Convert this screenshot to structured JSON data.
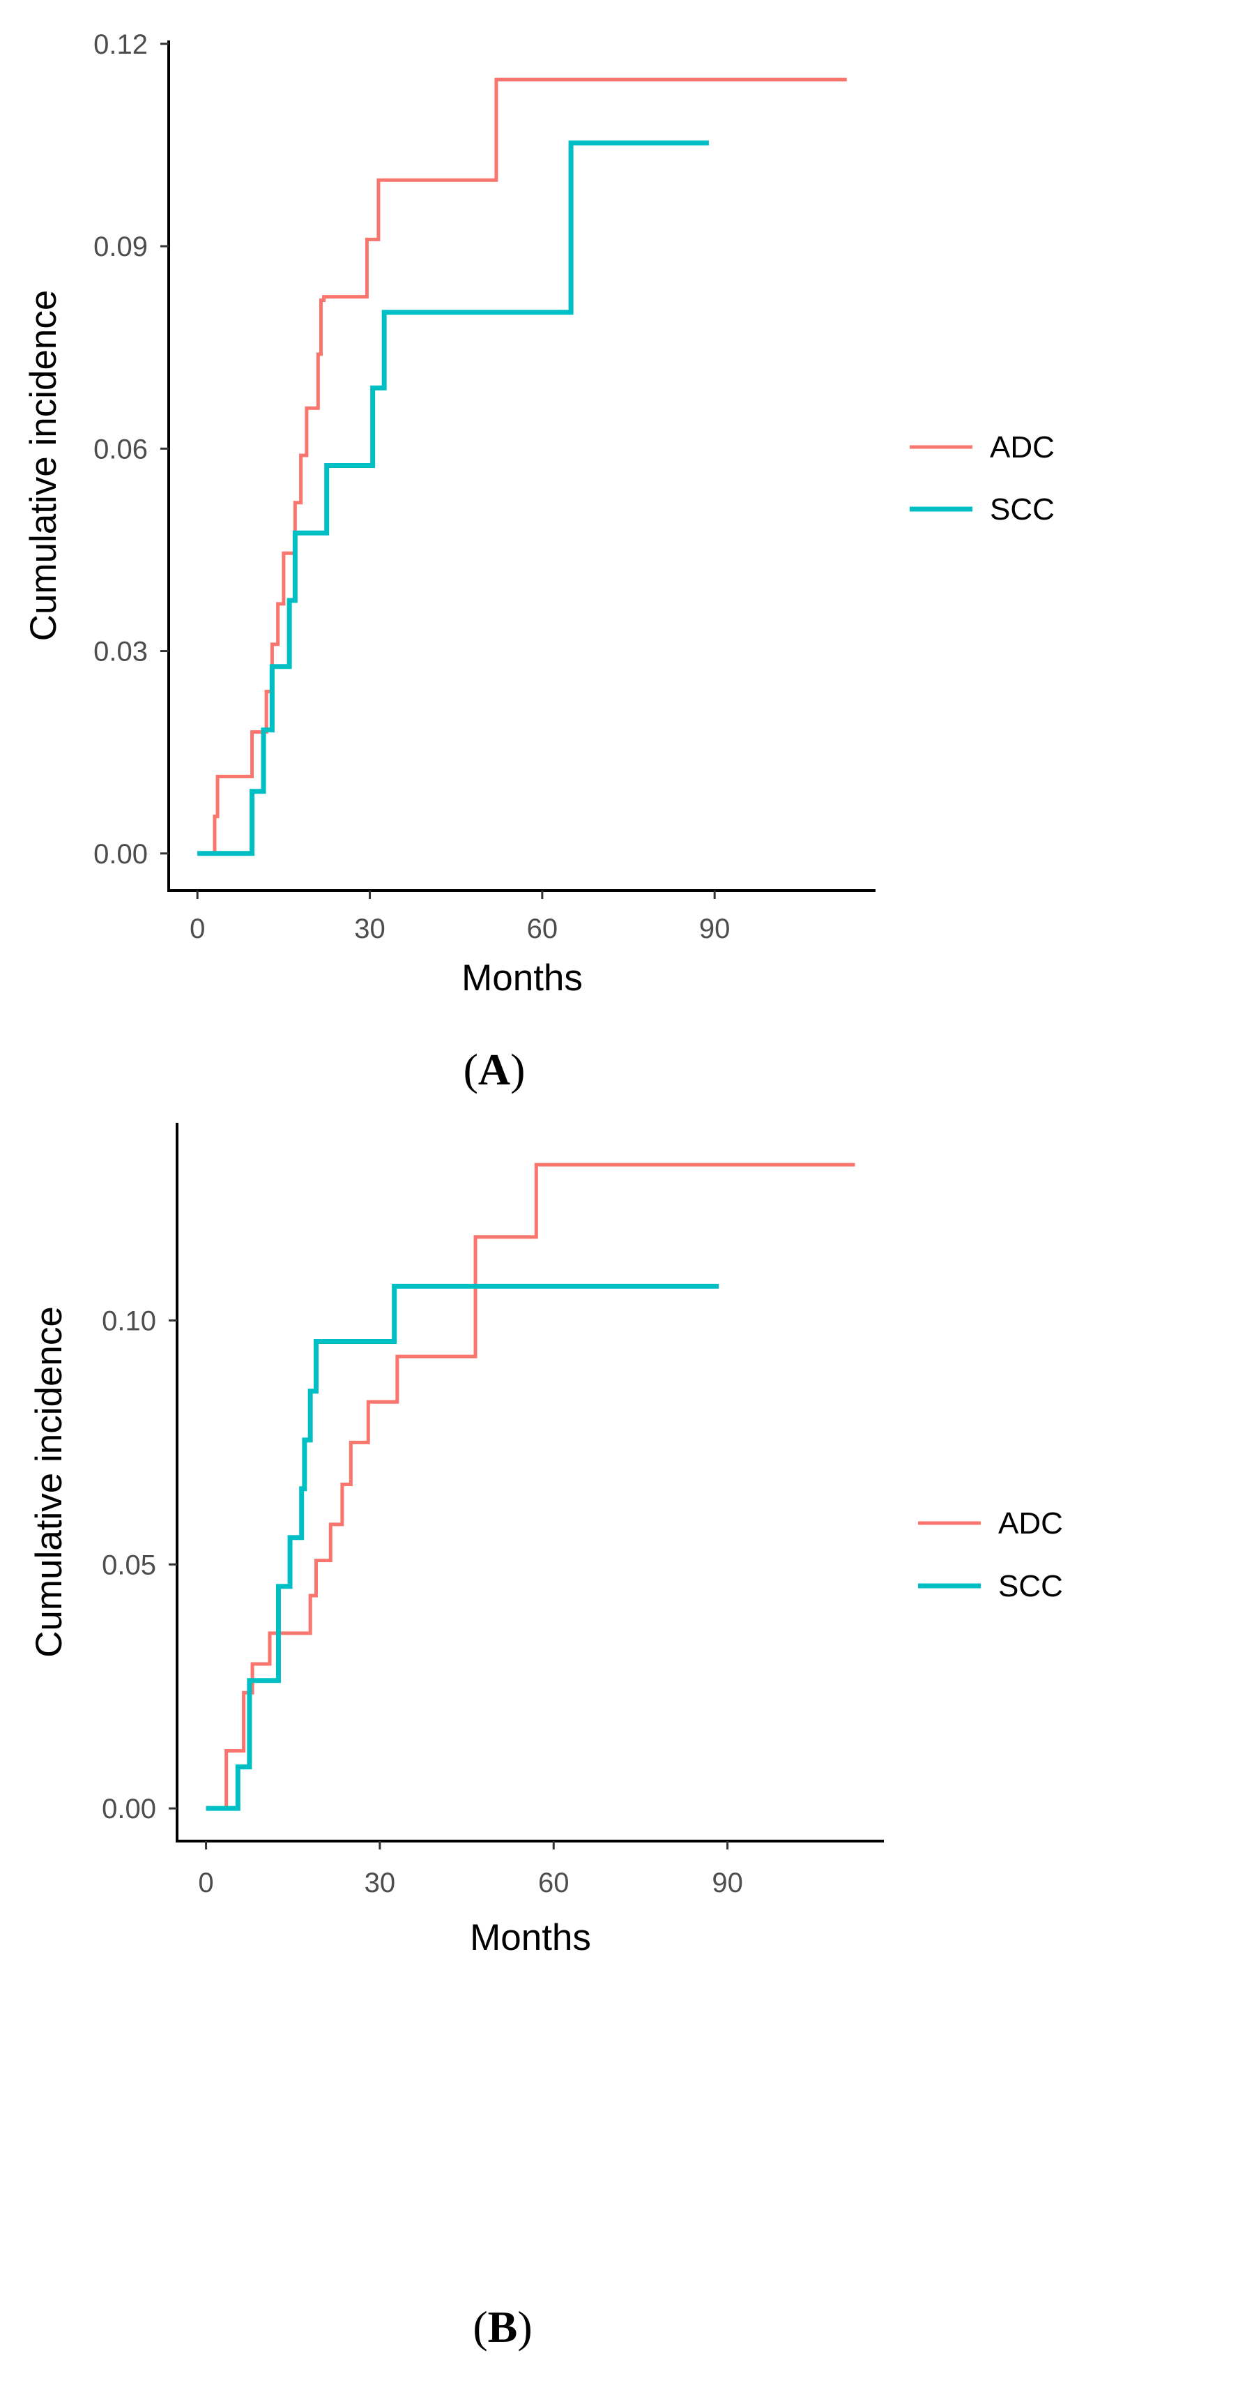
{
  "chart_data": [
    {
      "type": "line",
      "panel_label": "A",
      "xlabel": "Months",
      "ylabel": "Cumulative incidence",
      "x_ticks": [
        0,
        30,
        60,
        90
      ],
      "x_tick_labels": [
        "0",
        "30",
        "60",
        "90"
      ],
      "y_ticks": [
        0,
        0.03,
        0.06,
        0.09,
        0.12
      ],
      "y_tick_labels": [
        "0.00",
        "0.03",
        "0.06",
        "0.09",
        "0.12"
      ],
      "xlim": [
        -5,
        118
      ],
      "ylim": [
        -0.0055,
        0.1205
      ],
      "grid": false,
      "legend_position": "right",
      "series": [
        {
          "name": "ADC",
          "color": "#F8766D",
          "step": true,
          "x": [
            0,
            3,
            3.5,
            9.5,
            12,
            13,
            14,
            15,
            17,
            18,
            19,
            21,
            21.5,
            22,
            29.5,
            31.5,
            52,
            113
          ],
          "y": [
            0,
            0.0055,
            0.0114,
            0.018,
            0.024,
            0.031,
            0.037,
            0.0445,
            0.052,
            0.059,
            0.066,
            0.074,
            0.082,
            0.0825,
            0.091,
            0.0998,
            0.1147,
            0.1147
          ]
        },
        {
          "name": "SCC",
          "color": "#00BFC4",
          "step": true,
          "x": [
            0,
            9.5,
            11.5,
            13,
            16,
            17,
            22.5,
            30.5,
            32.5,
            65,
            89
          ],
          "y": [
            0,
            0.0092,
            0.0183,
            0.0277,
            0.0375,
            0.0475,
            0.0575,
            0.069,
            0.0802,
            0.1053,
            0.1053
          ]
        }
      ]
    },
    {
      "type": "line",
      "panel_label": "B",
      "xlabel": "Months",
      "ylabel": "Cumulative incidence",
      "x_ticks": [
        0,
        30,
        60,
        90
      ],
      "x_tick_labels": [
        "0",
        "30",
        "60",
        "90"
      ],
      "y_ticks": [
        0,
        0.05,
        0.1
      ],
      "y_tick_labels": [
        "0.00",
        "0.05",
        "0.10"
      ],
      "xlim": [
        -5,
        117
      ],
      "ylim": [
        -0.0067,
        0.1405
      ],
      "grid": false,
      "legend_position": "right",
      "series": [
        {
          "name": "ADC",
          "color": "#F8766D",
          "step": true,
          "x": [
            0,
            3.5,
            6.5,
            8,
            11,
            18,
            19,
            21.5,
            23.5,
            25,
            28,
            33,
            46.5,
            57,
            112
          ],
          "y": [
            0,
            0.0118,
            0.0237,
            0.0296,
            0.0359,
            0.0436,
            0.0508,
            0.0582,
            0.0664,
            0.075,
            0.0833,
            0.0926,
            0.1171,
            0.1319,
            0.1319
          ]
        },
        {
          "name": "SCC",
          "color": "#00BFC4",
          "step": true,
          "x": [
            0,
            5.5,
            7.5,
            12.5,
            14.5,
            16.5,
            17,
            18,
            19,
            32.5,
            88.5
          ],
          "y": [
            0,
            0.0085,
            0.0262,
            0.0455,
            0.0555,
            0.0655,
            0.0755,
            0.0855,
            0.0957,
            0.107,
            0.107
          ]
        }
      ]
    }
  ]
}
